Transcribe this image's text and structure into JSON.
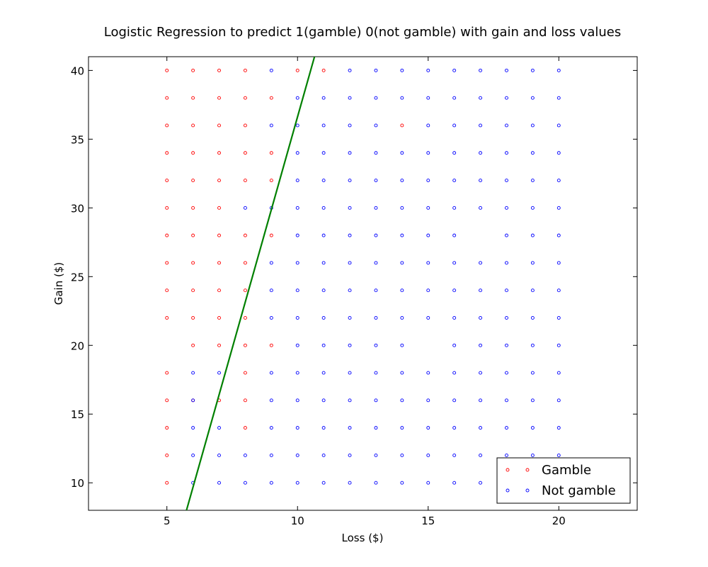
{
  "chart_data": {
    "type": "scatter",
    "title": "Logistic Regression to predict 1(gamble) 0(not gamble) with gain and loss values",
    "xlabel": "Loss ($)",
    "ylabel": "Gain ($)",
    "xlim": [
      2,
      23
    ],
    "ylim": [
      8,
      41
    ],
    "xticks": [
      5,
      10,
      15,
      20
    ],
    "yticks": [
      10,
      15,
      20,
      25,
      30,
      35,
      40
    ],
    "grid": false,
    "legend_position": "bottom-right",
    "series": [
      {
        "name": "Gamble",
        "color": "#ff0000",
        "marker": "open-circle",
        "points": [
          [
            5,
            40
          ],
          [
            6,
            40
          ],
          [
            7,
            40
          ],
          [
            8,
            40
          ],
          [
            10,
            40
          ],
          [
            11,
            40
          ],
          [
            5,
            38
          ],
          [
            6,
            38
          ],
          [
            7,
            38
          ],
          [
            8,
            38
          ],
          [
            9,
            38
          ],
          [
            5,
            36
          ],
          [
            6,
            36
          ],
          [
            7,
            36
          ],
          [
            8,
            36
          ],
          [
            14,
            36
          ],
          [
            5,
            34
          ],
          [
            6,
            34
          ],
          [
            7,
            34
          ],
          [
            8,
            34
          ],
          [
            9,
            34
          ],
          [
            5,
            32
          ],
          [
            6,
            32
          ],
          [
            7,
            32
          ],
          [
            8,
            32
          ],
          [
            9,
            32
          ],
          [
            5,
            30
          ],
          [
            6,
            30
          ],
          [
            7,
            30
          ],
          [
            5,
            28
          ],
          [
            6,
            28
          ],
          [
            7,
            28
          ],
          [
            8,
            28
          ],
          [
            9,
            28
          ],
          [
            5,
            26
          ],
          [
            6,
            26
          ],
          [
            7,
            26
          ],
          [
            8,
            26
          ],
          [
            5,
            24
          ],
          [
            6,
            24
          ],
          [
            7,
            24
          ],
          [
            8,
            24
          ],
          [
            5,
            22
          ],
          [
            6,
            22
          ],
          [
            7,
            22
          ],
          [
            8,
            22
          ],
          [
            6,
            20
          ],
          [
            7,
            20
          ],
          [
            8,
            20
          ],
          [
            9,
            20
          ],
          [
            5,
            18
          ],
          [
            8,
            18
          ],
          [
            5,
            16
          ],
          [
            6,
            16
          ],
          [
            7,
            16
          ],
          [
            8,
            16
          ],
          [
            5,
            14
          ],
          [
            8,
            14
          ],
          [
            5,
            12
          ],
          [
            5,
            10
          ]
        ]
      },
      {
        "name": "Not gamble",
        "color": "#0000ff",
        "marker": "open-circle",
        "points": [
          [
            9,
            40
          ],
          [
            12,
            40
          ],
          [
            13,
            40
          ],
          [
            14,
            40
          ],
          [
            15,
            40
          ],
          [
            16,
            40
          ],
          [
            17,
            40
          ],
          [
            18,
            40
          ],
          [
            19,
            40
          ],
          [
            20,
            40
          ],
          [
            10,
            38
          ],
          [
            11,
            38
          ],
          [
            12,
            38
          ],
          [
            13,
            38
          ],
          [
            14,
            38
          ],
          [
            15,
            38
          ],
          [
            16,
            38
          ],
          [
            17,
            38
          ],
          [
            18,
            38
          ],
          [
            19,
            38
          ],
          [
            20,
            38
          ],
          [
            9,
            36
          ],
          [
            10,
            36
          ],
          [
            11,
            36
          ],
          [
            12,
            36
          ],
          [
            13,
            36
          ],
          [
            15,
            36
          ],
          [
            16,
            36
          ],
          [
            17,
            36
          ],
          [
            18,
            36
          ],
          [
            19,
            36
          ],
          [
            20,
            36
          ],
          [
            10,
            34
          ],
          [
            11,
            34
          ],
          [
            12,
            34
          ],
          [
            13,
            34
          ],
          [
            14,
            34
          ],
          [
            15,
            34
          ],
          [
            16,
            34
          ],
          [
            17,
            34
          ],
          [
            18,
            34
          ],
          [
            19,
            34
          ],
          [
            20,
            34
          ],
          [
            10,
            32
          ],
          [
            11,
            32
          ],
          [
            12,
            32
          ],
          [
            13,
            32
          ],
          [
            14,
            32
          ],
          [
            15,
            32
          ],
          [
            16,
            32
          ],
          [
            17,
            32
          ],
          [
            18,
            32
          ],
          [
            19,
            32
          ],
          [
            20,
            32
          ],
          [
            8,
            30
          ],
          [
            9,
            30
          ],
          [
            10,
            30
          ],
          [
            11,
            30
          ],
          [
            12,
            30
          ],
          [
            13,
            30
          ],
          [
            14,
            30
          ],
          [
            15,
            30
          ],
          [
            16,
            30
          ],
          [
            17,
            30
          ],
          [
            18,
            30
          ],
          [
            19,
            30
          ],
          [
            20,
            30
          ],
          [
            10,
            28
          ],
          [
            11,
            28
          ],
          [
            12,
            28
          ],
          [
            13,
            28
          ],
          [
            14,
            28
          ],
          [
            15,
            28
          ],
          [
            16,
            28
          ],
          [
            18,
            28
          ],
          [
            19,
            28
          ],
          [
            20,
            28
          ],
          [
            9,
            26
          ],
          [
            10,
            26
          ],
          [
            11,
            26
          ],
          [
            12,
            26
          ],
          [
            13,
            26
          ],
          [
            14,
            26
          ],
          [
            15,
            26
          ],
          [
            16,
            26
          ],
          [
            17,
            26
          ],
          [
            18,
            26
          ],
          [
            19,
            26
          ],
          [
            20,
            26
          ],
          [
            9,
            24
          ],
          [
            10,
            24
          ],
          [
            11,
            24
          ],
          [
            12,
            24
          ],
          [
            13,
            24
          ],
          [
            14,
            24
          ],
          [
            15,
            24
          ],
          [
            16,
            24
          ],
          [
            17,
            24
          ],
          [
            18,
            24
          ],
          [
            19,
            24
          ],
          [
            20,
            24
          ],
          [
            9,
            22
          ],
          [
            10,
            22
          ],
          [
            11,
            22
          ],
          [
            12,
            22
          ],
          [
            13,
            22
          ],
          [
            14,
            22
          ],
          [
            15,
            22
          ],
          [
            16,
            22
          ],
          [
            17,
            22
          ],
          [
            18,
            22
          ],
          [
            19,
            22
          ],
          [
            20,
            22
          ],
          [
            10,
            20
          ],
          [
            11,
            20
          ],
          [
            12,
            20
          ],
          [
            13,
            20
          ],
          [
            14,
            20
          ],
          [
            16,
            20
          ],
          [
            17,
            20
          ],
          [
            18,
            20
          ],
          [
            19,
            20
          ],
          [
            20,
            20
          ],
          [
            6,
            18
          ],
          [
            7,
            18
          ],
          [
            9,
            18
          ],
          [
            10,
            18
          ],
          [
            11,
            18
          ],
          [
            12,
            18
          ],
          [
            13,
            18
          ],
          [
            14,
            18
          ],
          [
            15,
            18
          ],
          [
            16,
            18
          ],
          [
            17,
            18
          ],
          [
            18,
            18
          ],
          [
            19,
            18
          ],
          [
            20,
            18
          ],
          [
            6,
            16
          ],
          [
            9,
            16
          ],
          [
            10,
            16
          ],
          [
            11,
            16
          ],
          [
            12,
            16
          ],
          [
            13,
            16
          ],
          [
            14,
            16
          ],
          [
            15,
            16
          ],
          [
            16,
            16
          ],
          [
            17,
            16
          ],
          [
            18,
            16
          ],
          [
            19,
            16
          ],
          [
            20,
            16
          ],
          [
            6,
            14
          ],
          [
            7,
            14
          ],
          [
            9,
            14
          ],
          [
            10,
            14
          ],
          [
            11,
            14
          ],
          [
            12,
            14
          ],
          [
            13,
            14
          ],
          [
            14,
            14
          ],
          [
            15,
            14
          ],
          [
            16,
            14
          ],
          [
            17,
            14
          ],
          [
            18,
            14
          ],
          [
            19,
            14
          ],
          [
            20,
            14
          ],
          [
            6,
            12
          ],
          [
            7,
            12
          ],
          [
            8,
            12
          ],
          [
            9,
            12
          ],
          [
            10,
            12
          ],
          [
            11,
            12
          ],
          [
            12,
            12
          ],
          [
            13,
            12
          ],
          [
            14,
            12
          ],
          [
            15,
            12
          ],
          [
            16,
            12
          ],
          [
            17,
            12
          ],
          [
            18,
            12
          ],
          [
            19,
            12
          ],
          [
            20,
            12
          ],
          [
            6,
            10
          ],
          [
            7,
            10
          ],
          [
            8,
            10
          ],
          [
            9,
            10
          ],
          [
            10,
            10
          ],
          [
            11,
            10
          ],
          [
            12,
            10
          ],
          [
            13,
            10
          ],
          [
            14,
            10
          ],
          [
            15,
            10
          ],
          [
            16,
            10
          ],
          [
            17,
            10
          ]
        ]
      }
    ],
    "decision_boundary": {
      "color": "#008000",
      "points": [
        [
          5.75,
          8
        ],
        [
          10.65,
          41
        ]
      ]
    }
  }
}
